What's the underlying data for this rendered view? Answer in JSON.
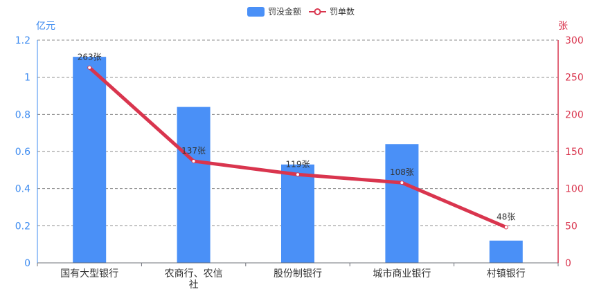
{
  "chart_data": {
    "type": "bar",
    "categories": [
      "国有大型银行",
      "农商行、农信社",
      "股份制银行",
      "城市商业银行",
      "村镇银行"
    ],
    "series": [
      {
        "name": "罚没金额",
        "type": "bar",
        "axis": "left",
        "unit": "亿元",
        "values": [
          1.11,
          0.84,
          0.53,
          0.64,
          0.12
        ]
      },
      {
        "name": "罚单数",
        "type": "line",
        "axis": "right",
        "unit": "张",
        "values": [
          263,
          137,
          119,
          108,
          48
        ],
        "labels": [
          "263张",
          "137张",
          "119张",
          "108张",
          "48张"
        ]
      }
    ],
    "y_left": {
      "label": "亿元",
      "min": 0,
      "max": 1.2,
      "ticks": [
        "0",
        "0.2",
        "0.4",
        "0.6",
        "0.8",
        "1",
        "1.2"
      ]
    },
    "y_right": {
      "label": "张",
      "min": 0,
      "max": 300,
      "ticks": [
        "0",
        "50",
        "100",
        "150",
        "200",
        "250",
        "300"
      ]
    },
    "grid": "dashed-horizontal",
    "legend_position": "top-center",
    "colors": {
      "bar": "#4a90f7",
      "line": "#d9354e",
      "left_axis": "#3d8bf0",
      "right_axis": "#d9354e"
    }
  }
}
